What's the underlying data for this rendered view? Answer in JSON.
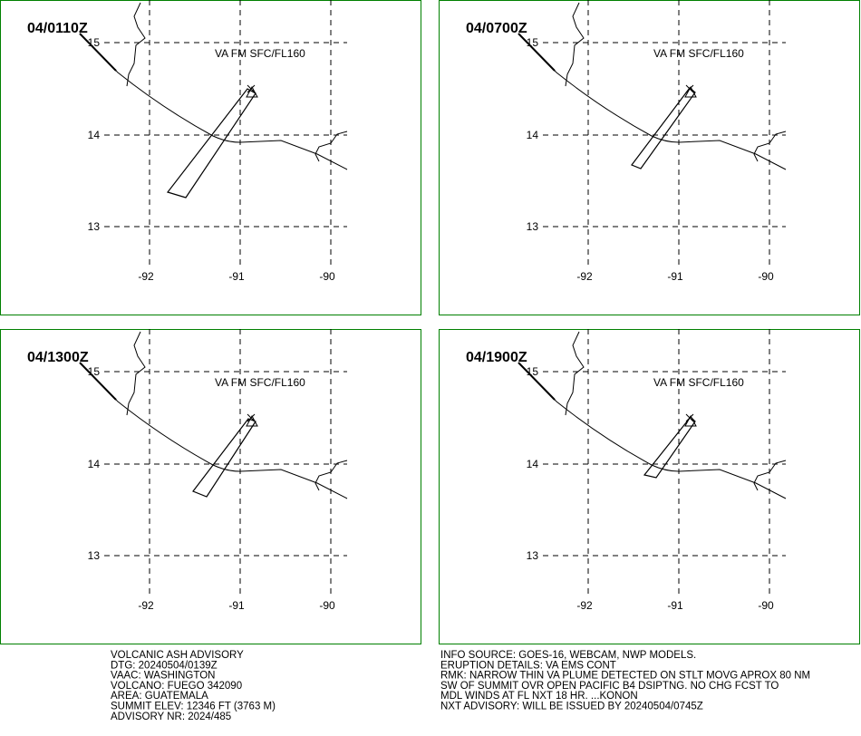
{
  "panels": [
    {
      "time": "04/0110Z",
      "level": "VA FM SFC/FL160"
    },
    {
      "time": "04/0700Z",
      "level": "VA FM SFC/FL160"
    },
    {
      "time": "04/1300Z",
      "level": "VA FM SFC/FL160"
    },
    {
      "time": "04/1900Z",
      "level": "VA FM SFC/FL160"
    }
  ],
  "grid": {
    "lat_labels": [
      "15",
      "14",
      "13"
    ],
    "lon_labels": [
      "-92",
      "-91",
      "-90"
    ]
  },
  "advisory_left": [
    "VOLCANIC ASH ADVISORY",
    "DTG: 20240504/0139Z",
    "VAAC: WASHINGTON",
    "VOLCANO: FUEGO 342090",
    "AREA: GUATEMALA",
    "SUMMIT ELEV: 12346 FT (3763 M)",
    "ADVISORY NR: 2024/485"
  ],
  "advisory_right": [
    "INFO SOURCE: GOES-16, WEBCAM, NWP MODELS.",
    "ERUPTION DETAILS: VA EMS CONT",
    "RMK: NARROW THIN VA PLUME DETECTED ON STLT MOVG APROX 80 NM",
    "SW OF SUMMIT OVR OPEN PACIFIC B4 DSIPTNG. NO CHG FCST TO",
    "MDL WINDS AT FL NXT 18 HR. ...KONON",
    "NXT ADVISORY: WILL BE ISSUED BY 20240504/0745Z"
  ]
}
